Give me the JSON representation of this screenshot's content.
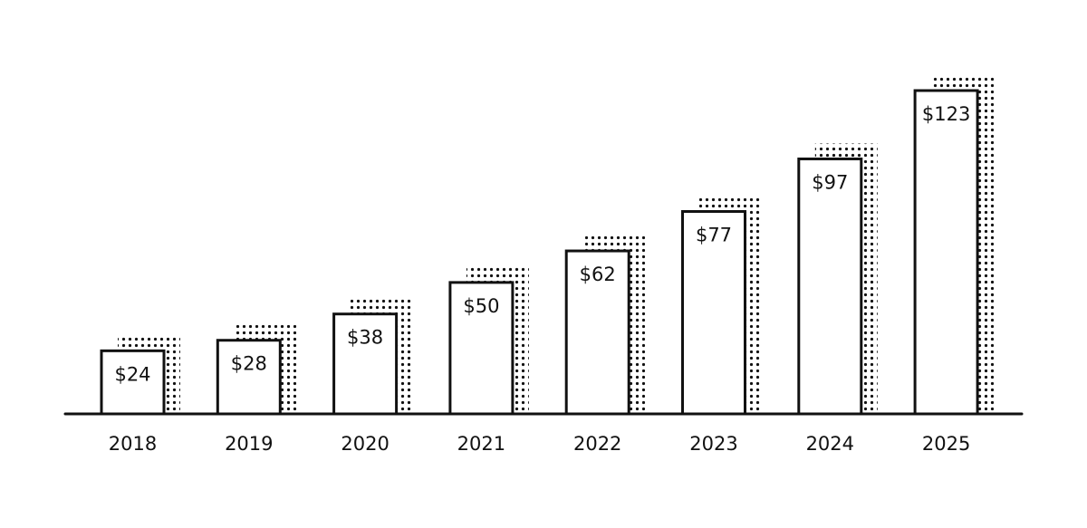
{
  "chart_data": {
    "type": "bar",
    "title": "",
    "xlabel": "",
    "ylabel": "",
    "categories": [
      "2018",
      "2019",
      "2020",
      "2021",
      "2022",
      "2023",
      "2024",
      "2025"
    ],
    "values": [
      24,
      28,
      38,
      50,
      62,
      77,
      97,
      123
    ],
    "data_labels": [
      "$24",
      "$28",
      "$38",
      "$50",
      "$62",
      "$77",
      "$97",
      "$123"
    ],
    "ylim": [
      0,
      130
    ],
    "grid": false,
    "legend": "none",
    "colors": {
      "bar_fill": "#ffffff",
      "bar_outline": "#111111",
      "shadow_dots": "#111111",
      "baseline": "#111111"
    }
  }
}
